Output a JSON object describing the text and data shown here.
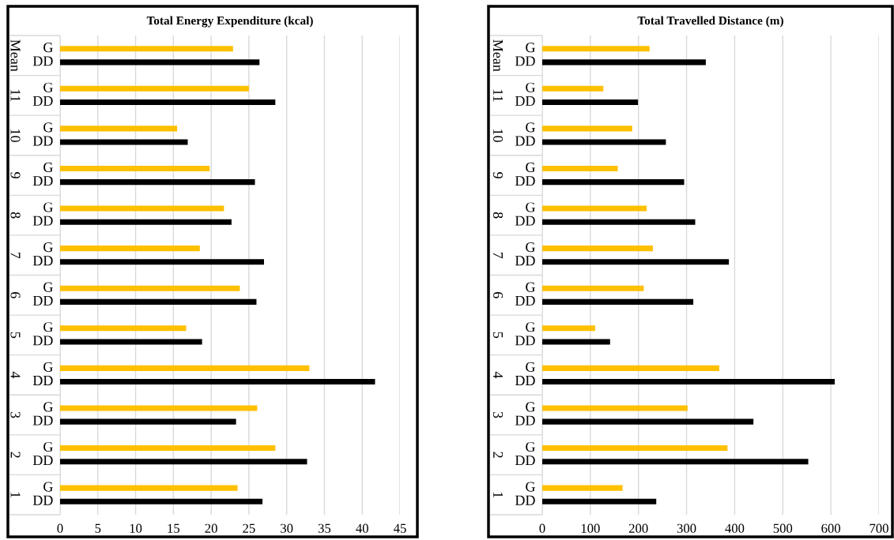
{
  "chart_data": [
    {
      "type": "bar",
      "orientation": "horizontal",
      "title": "Total Energy Expenditure (kcal)",
      "categories": [
        "Mean",
        "11",
        "10",
        "9",
        "8",
        "7",
        "6",
        "5",
        "4",
        "3",
        "2",
        "1"
      ],
      "series": [
        {
          "name": "G",
          "color": "#ffc000",
          "values": [
            22.9,
            25.0,
            15.5,
            19.8,
            21.7,
            18.5,
            23.8,
            16.7,
            33.0,
            26.1,
            28.5,
            23.5
          ]
        },
        {
          "name": "DD",
          "color": "#000000",
          "values": [
            26.4,
            28.5,
            16.9,
            25.8,
            22.7,
            27.0,
            26.0,
            18.8,
            41.7,
            23.3,
            32.7,
            26.8
          ]
        }
      ],
      "xlim": [
        0,
        45
      ],
      "xticks": [
        0,
        5,
        10,
        15,
        20,
        25,
        30,
        35,
        40,
        45
      ],
      "grid": "x"
    },
    {
      "type": "bar",
      "orientation": "horizontal",
      "title": "Total Travelled Distance (m)",
      "categories": [
        "Mean",
        "11",
        "10",
        "9",
        "8",
        "7",
        "6",
        "5",
        "4",
        "3",
        "2",
        "1"
      ],
      "series": [
        {
          "name": "G",
          "color": "#ffc000",
          "values": [
            223,
            127,
            187,
            157,
            217,
            230,
            211,
            110,
            368,
            302,
            385,
            167
          ]
        },
        {
          "name": "DD",
          "color": "#000000",
          "values": [
            340,
            199,
            257,
            295,
            318,
            388,
            314,
            141,
            608,
            439,
            553,
            237
          ]
        }
      ],
      "xlim": [
        0,
        700
      ],
      "xticks": [
        0,
        100,
        200,
        300,
        400,
        500,
        600,
        700
      ],
      "grid": "x"
    }
  ]
}
